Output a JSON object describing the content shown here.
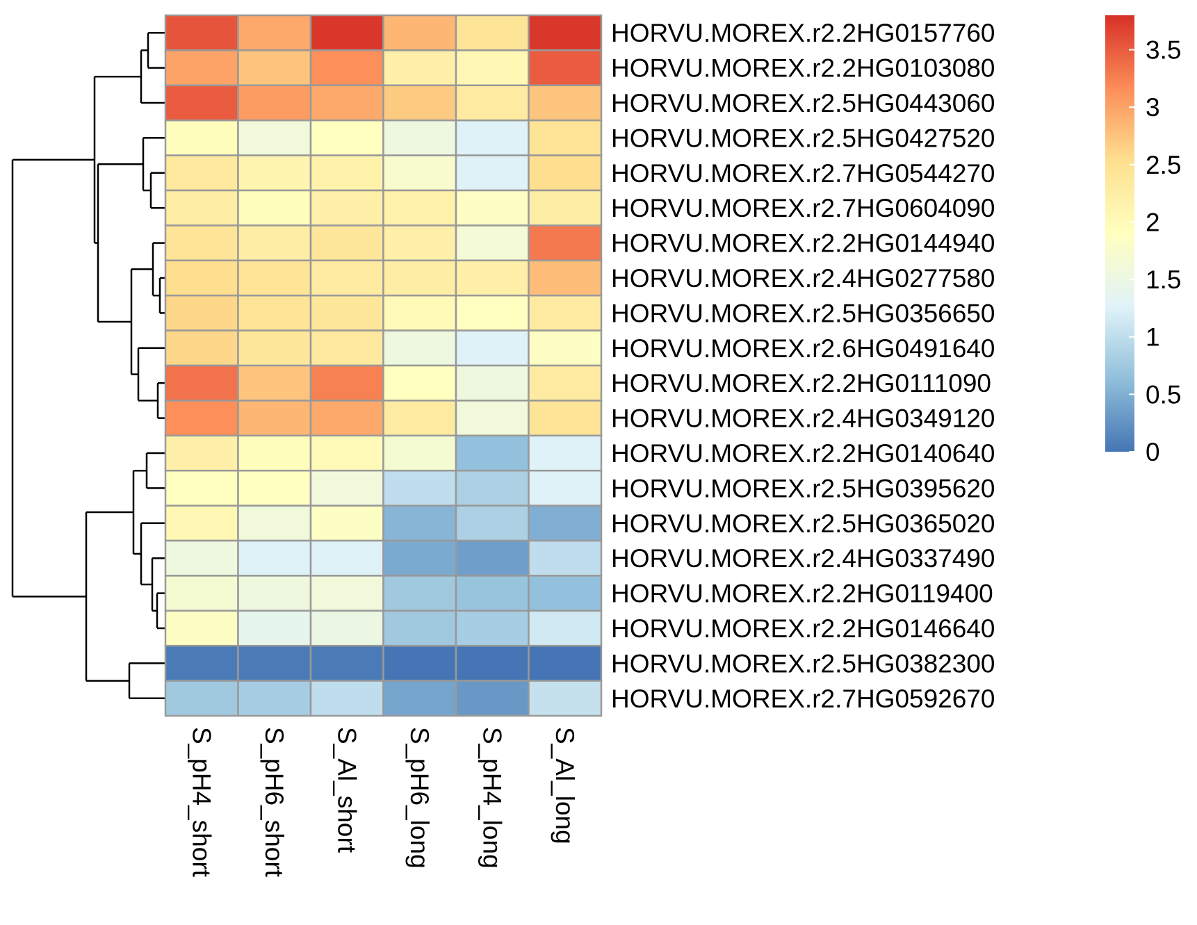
{
  "chart_data": {
    "type": "heatmap",
    "title": "",
    "xlabel": "",
    "ylabel": "",
    "columns": [
      "S_pH4_short",
      "S_pH6_short",
      "S_Al_short",
      "S_pH6_long",
      "S_pH4_long",
      "S_Al_long"
    ],
    "rows": [
      "HORVU.MOREX.r2.2HG0157760",
      "HORVU.MOREX.r2.2HG0103080",
      "HORVU.MOREX.r2.5HG0443060",
      "HORVU.MOREX.r2.5HG0427520",
      "HORVU.MOREX.r2.7HG0544270",
      "HORVU.MOREX.r2.7HG0604090",
      "HORVU.MOREX.r2.2HG0144940",
      "HORVU.MOREX.r2.4HG0277580",
      "HORVU.MOREX.r2.5HG0356650",
      "HORVU.MOREX.r2.6HG0491640",
      "HORVU.MOREX.r2.2HG0111090",
      "HORVU.MOREX.r2.4HG0349120",
      "HORVU.MOREX.r2.2HG0140640",
      "HORVU.MOREX.r2.5HG0395620",
      "HORVU.MOREX.r2.5HG0365020",
      "HORVU.MOREX.r2.4HG0337490",
      "HORVU.MOREX.r2.2HG0119400",
      "HORVU.MOREX.r2.2HG0146640",
      "HORVU.MOREX.r2.5HG0382300",
      "HORVU.MOREX.r2.7HG0592670"
    ],
    "values": [
      [
        3.55,
        2.95,
        3.75,
        2.85,
        2.45,
        3.75
      ],
      [
        3.0,
        2.75,
        3.15,
        2.2,
        2.05,
        3.5
      ],
      [
        3.5,
        3.05,
        2.95,
        2.7,
        2.3,
        2.75
      ],
      [
        1.95,
        1.6,
        1.9,
        1.55,
        1.25,
        2.45
      ],
      [
        2.35,
        2.1,
        2.15,
        1.75,
        1.25,
        2.55
      ],
      [
        2.25,
        1.95,
        2.2,
        2.15,
        1.85,
        2.25
      ],
      [
        2.45,
        2.25,
        2.4,
        2.2,
        1.65,
        3.3
      ],
      [
        2.55,
        2.45,
        2.3,
        2.25,
        2.2,
        2.8
      ],
      [
        2.6,
        2.45,
        2.4,
        2.0,
        1.9,
        2.3
      ],
      [
        2.6,
        2.4,
        2.35,
        1.55,
        1.25,
        1.85
      ],
      [
        3.35,
        2.75,
        3.25,
        1.9,
        1.55,
        2.3
      ],
      [
        3.15,
        2.85,
        2.95,
        2.3,
        1.6,
        2.45
      ],
      [
        2.2,
        1.95,
        2.0,
        1.7,
        0.65,
        1.25
      ],
      [
        1.9,
        1.9,
        1.6,
        1.0,
        0.85,
        1.25
      ],
      [
        2.05,
        1.6,
        1.85,
        0.55,
        0.85,
        0.5
      ],
      [
        1.55,
        1.25,
        1.25,
        0.45,
        0.35,
        1.0
      ],
      [
        1.7,
        1.55,
        1.6,
        0.75,
        0.7,
        0.65
      ],
      [
        1.85,
        1.4,
        1.5,
        0.75,
        0.8,
        1.15
      ],
      [
        0.05,
        0.05,
        0.05,
        0.0,
        0.0,
        0.0
      ],
      [
        0.75,
        0.8,
        1.0,
        0.4,
        0.3,
        1.05
      ]
    ],
    "row_order_leaves": "dendrogram shown on left",
    "colorscale": {
      "min": 0,
      "max": 3.8,
      "stops": [
        "#4575b4",
        "#91bfdb",
        "#e0f3f8",
        "#ffffbf",
        "#fee090",
        "#fc8d59",
        "#d73027"
      ],
      "ticks": [
        0,
        0.5,
        1,
        1.5,
        2,
        2.5,
        3,
        3.5
      ],
      "tick_labels": [
        "0",
        "0.5",
        "1",
        "1.5",
        "2",
        "2.5",
        "3",
        "3.5"
      ]
    },
    "cell_border_color": "#999999",
    "dendrogram_color": "#000000",
    "legend_position": "right"
  }
}
